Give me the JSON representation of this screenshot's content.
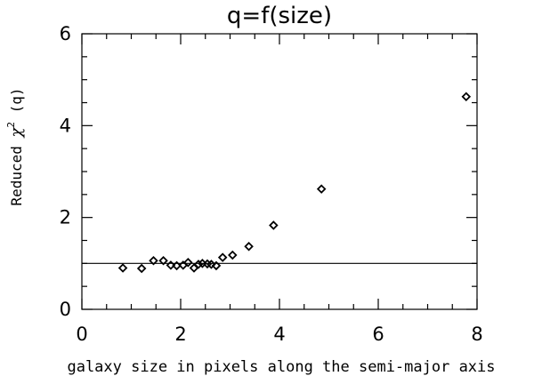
{
  "chart_data": {
    "type": "scatter",
    "title": "q=f(size)",
    "xlabel": "galaxy size in pixels along the semi-major axis",
    "ylabel": {
      "prefix": "Reduced ",
      "symbol": "χ",
      "superscript": "2",
      "suffix": " (q)"
    },
    "xlim": [
      0,
      8
    ],
    "ylim": [
      0,
      6
    ],
    "xticks": [
      0,
      2,
      4,
      6,
      8
    ],
    "yticks": [
      0,
      2,
      4,
      6
    ],
    "x_minor_step": 0.5,
    "y_minor_step": 0.5,
    "marker": "diamond-open",
    "reference_line": {
      "y": 1.0
    },
    "grid": false,
    "points": [
      {
        "x": 0.83,
        "y": 0.9
      },
      {
        "x": 1.21,
        "y": 0.89
      },
      {
        "x": 1.45,
        "y": 1.06
      },
      {
        "x": 1.65,
        "y": 1.06
      },
      {
        "x": 1.8,
        "y": 0.96
      },
      {
        "x": 1.92,
        "y": 0.95
      },
      {
        "x": 2.05,
        "y": 0.96
      },
      {
        "x": 2.15,
        "y": 1.02
      },
      {
        "x": 2.27,
        "y": 0.9
      },
      {
        "x": 2.36,
        "y": 0.98
      },
      {
        "x": 2.44,
        "y": 1.0
      },
      {
        "x": 2.54,
        "y": 0.99
      },
      {
        "x": 2.62,
        "y": 0.98
      },
      {
        "x": 2.72,
        "y": 0.95
      },
      {
        "x": 2.85,
        "y": 1.13
      },
      {
        "x": 3.05,
        "y": 1.18
      },
      {
        "x": 3.38,
        "y": 1.37
      },
      {
        "x": 3.88,
        "y": 1.83
      },
      {
        "x": 4.85,
        "y": 2.62
      },
      {
        "x": 7.78,
        "y": 4.63
      }
    ]
  }
}
